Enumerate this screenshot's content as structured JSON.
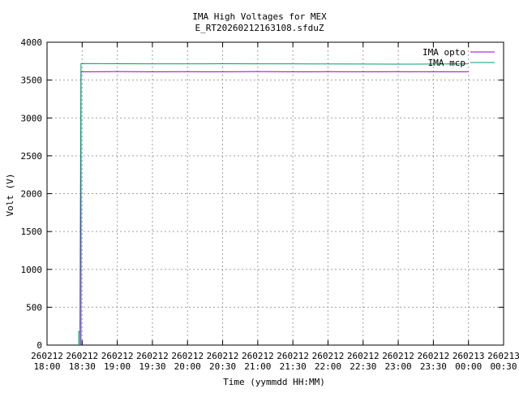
{
  "chart_data": {
    "type": "line",
    "title": "IMA High Voltages for MEX",
    "subtitle": "E_RT20260212163108.sfduZ",
    "x_label": "Time (yymmdd HH:MM)",
    "y_label": "Volt (V)",
    "xlim": [
      "260212 18:00",
      "260213 00:30"
    ],
    "xticks": [
      "260212 18:00",
      "260212 18:30",
      "260212 19:00",
      "260212 19:30",
      "260212 20:00",
      "260212 20:30",
      "260212 21:00",
      "260212 21:30",
      "260212 22:00",
      "260212 22:30",
      "260212 23:00",
      "260212 23:30",
      "260213 00:00",
      "260213 00:30"
    ],
    "ylim": [
      0,
      4000
    ],
    "yticks": [
      0,
      500,
      1000,
      1500,
      2000,
      2500,
      3000,
      3500,
      4000
    ],
    "grid": true,
    "legend": "top-right",
    "series": [
      {
        "name": "IMA opto",
        "color": "#9400d3",
        "x": [
          "260212 18:29",
          "260212 18:29",
          "260212 19:00",
          "260212 19:30",
          "260212 20:00",
          "260212 20:30",
          "260212 21:00",
          "260212 21:30",
          "260212 22:00",
          "260212 22:30",
          "260212 23:00",
          "260212 23:30",
          "260213 00:00"
        ],
        "values": [
          0,
          3610,
          3612,
          3610,
          3611,
          3610,
          3612,
          3610,
          3611,
          3610,
          3611,
          3610,
          3610
        ]
      },
      {
        "name": "IMA mcp",
        "color": "#009e73",
        "x": [
          "260212 18:27",
          "260212 18:27",
          "260212 18:28",
          "260212 18:28",
          "260212 18:29",
          "260212 18:30",
          "260212 19:00",
          "260212 19:30",
          "260212 20:00",
          "260212 20:30",
          "260212 21:00",
          "260212 21:30",
          "260212 22:00",
          "260212 22:30",
          "260212 23:00",
          "260212 23:30",
          "260213 00:00"
        ],
        "values": [
          0,
          180,
          180,
          0,
          3715,
          3718,
          3716,
          3715,
          3714,
          3716,
          3715,
          3714,
          3713,
          3712,
          3710,
          3712,
          3714
        ]
      }
    ]
  }
}
